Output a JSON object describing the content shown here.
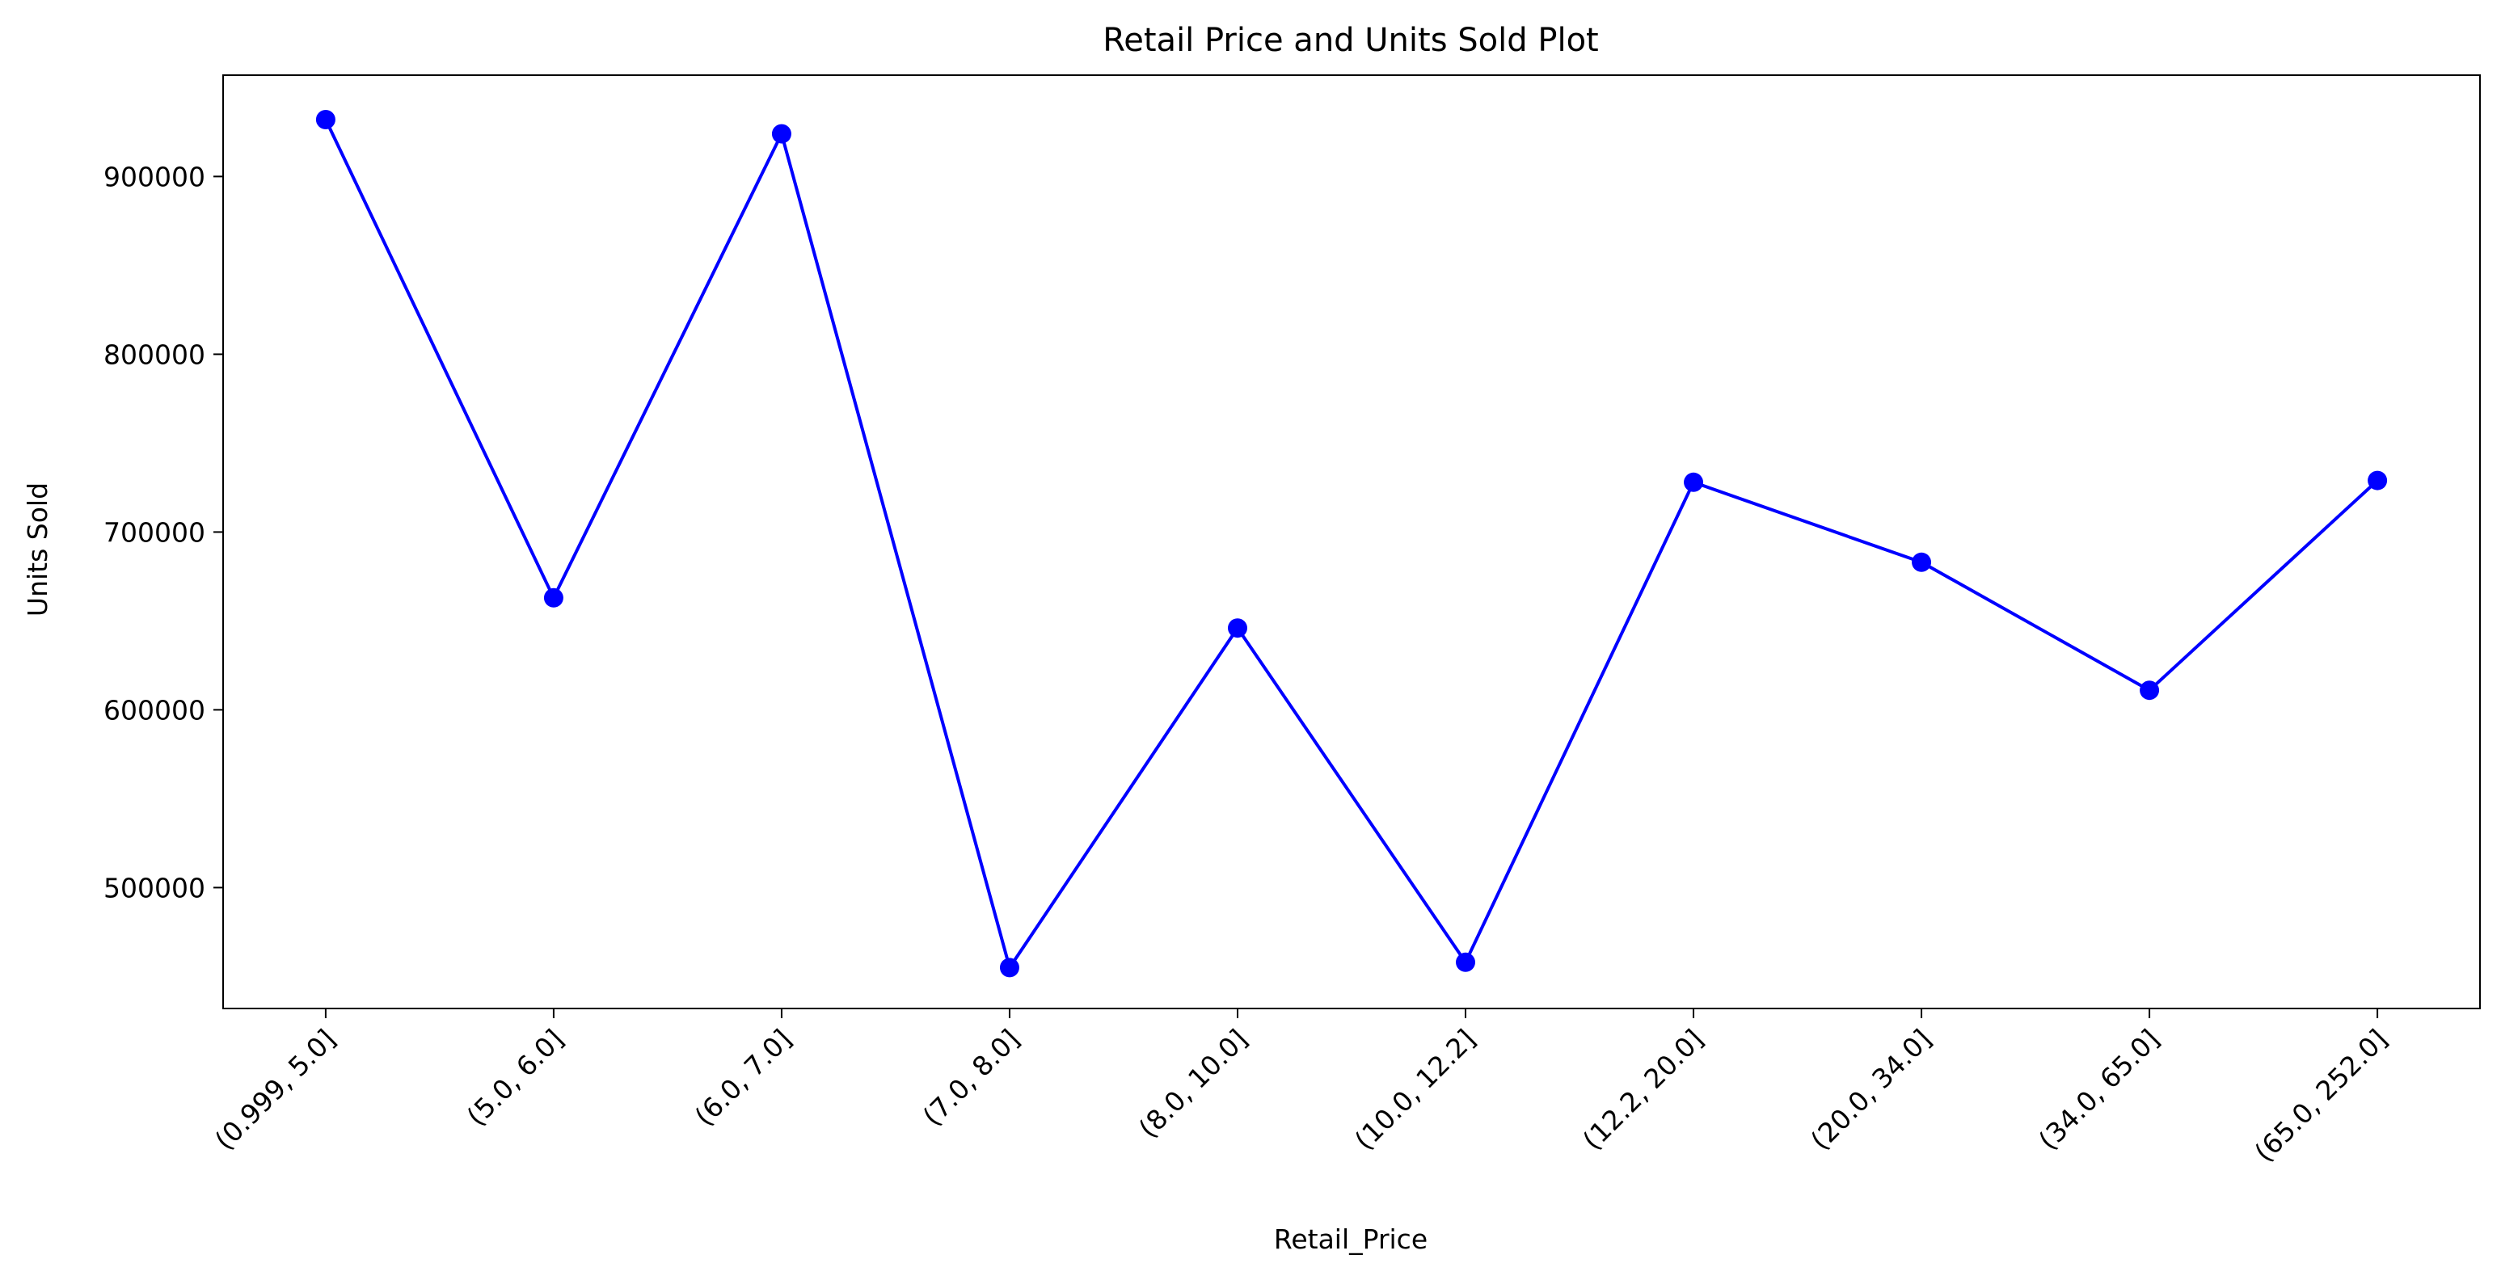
{
  "chart_data": {
    "type": "line",
    "title": "Retail Price and Units Sold Plot",
    "xlabel": "Retail_Price",
    "ylabel": "Units Sold",
    "categories": [
      "(0.999, 5.0]",
      "(5.0, 6.0]",
      "(6.0, 7.0]",
      "(7.0, 8.0]",
      "(8.0, 10.0]",
      "(10.0, 12.2]",
      "(12.2, 20.0]",
      "(20.0, 34.0]",
      "(34.0, 65.0]",
      "(65.0, 252.0]"
    ],
    "series": [
      {
        "color": "#0000ff",
        "marker": "circle",
        "values": [
          932000,
          663000,
          924000,
          455000,
          646000,
          458000,
          728000,
          683000,
          611000,
          729000
        ]
      }
    ],
    "ylim": [
      432000,
      957000
    ],
    "yticks": [
      500000,
      600000,
      700000,
      800000,
      900000
    ],
    "grid": false,
    "legend": "none"
  }
}
